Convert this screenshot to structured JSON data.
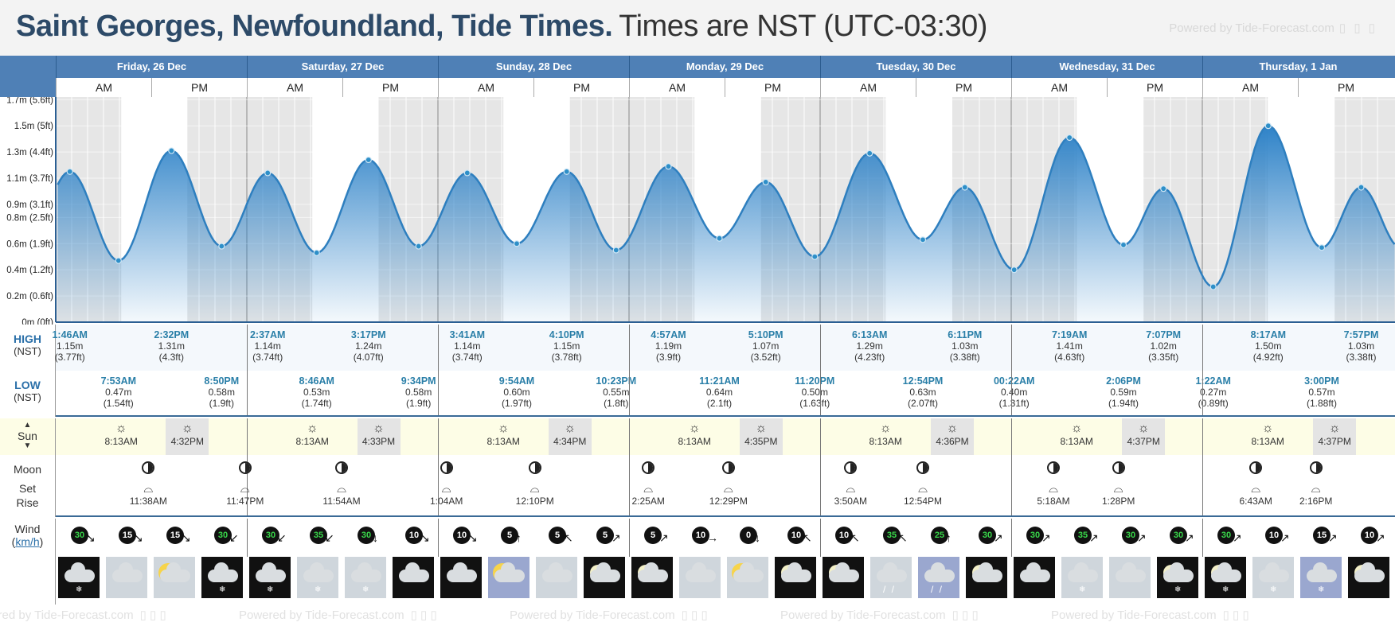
{
  "title": {
    "location": "Saint Georges, Newfoundland, Tide Times.",
    "timezone": "Times are NST (UTC-03:30)",
    "powered_by": "Powered by Tide-Forecast.com",
    "powered_icons": "▯ ▯ ▯"
  },
  "days": [
    {
      "label": "Friday, 26 Dec"
    },
    {
      "label": "Saturday, 27 Dec"
    },
    {
      "label": "Sunday, 28 Dec"
    },
    {
      "label": "Monday, 29 Dec"
    },
    {
      "label": "Tuesday, 30 Dec"
    },
    {
      "label": "Wednesday, 31 Dec"
    },
    {
      "label": "Thursday, 1 Jan"
    }
  ],
  "ampm": {
    "am": "AM",
    "pm": "PM"
  },
  "row_labels": {
    "high": "HIGH",
    "high_tz": "(NST)",
    "low": "LOW",
    "low_tz": "(NST)",
    "sun": "Sun",
    "moon": "Moon",
    "set": "Set",
    "rise": "Rise",
    "wind": "Wind",
    "wind_unit": "km/h"
  },
  "chart_data": {
    "type": "area",
    "title": "",
    "xlabel": "",
    "ylabel": "",
    "ylim": [
      0,
      1.72
    ],
    "y_ticks": [
      {
        "v": 0,
        "label": "0m (0ft)"
      },
      {
        "v": 0.2,
        "label": "0.2m (0.6ft)"
      },
      {
        "v": 0.4,
        "label": "0.4m (1.2ft)"
      },
      {
        "v": 0.6,
        "label": "0.6m (1.9ft)"
      },
      {
        "v": 0.8,
        "label": "0.8m (2.5ft)"
      },
      {
        "v": 0.9,
        "label": "0.9m (3.1ft)"
      },
      {
        "v": 1.1,
        "label": "1.1m (3.7ft)"
      },
      {
        "v": 1.3,
        "label": "1.3m (4.4ft)"
      },
      {
        "v": 1.5,
        "label": "1.5m (5ft)"
      },
      {
        "v": 1.7,
        "label": "1.7m (5.6ft)"
      }
    ],
    "series": [
      {
        "points": [
          {
            "time": "26 Dec 1:46AM",
            "h": 1.15
          },
          {
            "time": "26 Dec 7:53AM",
            "h": 0.47
          },
          {
            "time": "26 Dec 2:32PM",
            "h": 1.31
          },
          {
            "time": "26 Dec 8:50PM",
            "h": 0.58
          },
          {
            "time": "27 Dec 2:37AM",
            "h": 1.14
          },
          {
            "time": "27 Dec 8:46AM",
            "h": 0.53
          },
          {
            "time": "27 Dec 3:17PM",
            "h": 1.24
          },
          {
            "time": "27 Dec 9:34PM",
            "h": 0.58
          },
          {
            "time": "28 Dec 3:41AM",
            "h": 1.14
          },
          {
            "time": "28 Dec 9:54AM",
            "h": 0.6
          },
          {
            "time": "28 Dec 4:10PM",
            "h": 1.15
          },
          {
            "time": "28 Dec 10:23PM",
            "h": 0.55
          },
          {
            "time": "29 Dec 4:57AM",
            "h": 1.19
          },
          {
            "time": "29 Dec 11:21AM",
            "h": 0.64
          },
          {
            "time": "29 Dec 5:10PM",
            "h": 1.07
          },
          {
            "time": "29 Dec 11:20PM",
            "h": 0.5
          },
          {
            "time": "30 Dec 6:13AM",
            "h": 1.29
          },
          {
            "time": "30 Dec 12:54PM",
            "h": 0.63
          },
          {
            "time": "30 Dec 6:11PM",
            "h": 1.03
          },
          {
            "time": "31 Dec 00:22AM",
            "h": 0.4
          },
          {
            "time": "31 Dec 7:19AM",
            "h": 1.41
          },
          {
            "time": "31 Dec 2:06PM",
            "h": 0.59
          },
          {
            "time": "31 Dec 7:07PM",
            "h": 1.02
          },
          {
            "time": "1 Jan 1:22AM",
            "h": 0.27
          },
          {
            "time": "1 Jan 8:17AM",
            "h": 1.5
          },
          {
            "time": "1 Jan 3:00PM",
            "h": 0.57
          },
          {
            "time": "1 Jan 7:57PM",
            "h": 1.03
          }
        ]
      }
    ]
  },
  "highs": [
    {
      "day": 0,
      "hour": 1.77,
      "time": "1:46AM",
      "m": "1.15m",
      "ft": "(3.77ft)"
    },
    {
      "day": 0,
      "hour": 14.53,
      "time": "2:32PM",
      "m": "1.31m",
      "ft": "(4.3ft)"
    },
    {
      "day": 1,
      "hour": 2.62,
      "time": "2:37AM",
      "m": "1.14m",
      "ft": "(3.74ft)"
    },
    {
      "day": 1,
      "hour": 15.28,
      "time": "3:17PM",
      "m": "1.24m",
      "ft": "(4.07ft)"
    },
    {
      "day": 2,
      "hour": 3.68,
      "time": "3:41AM",
      "m": "1.14m",
      "ft": "(3.74ft)"
    },
    {
      "day": 2,
      "hour": 16.17,
      "time": "4:10PM",
      "m": "1.15m",
      "ft": "(3.78ft)"
    },
    {
      "day": 3,
      "hour": 4.95,
      "time": "4:57AM",
      "m": "1.19m",
      "ft": "(3.9ft)"
    },
    {
      "day": 3,
      "hour": 17.17,
      "time": "5:10PM",
      "m": "1.07m",
      "ft": "(3.52ft)"
    },
    {
      "day": 4,
      "hour": 6.22,
      "time": "6:13AM",
      "m": "1.29m",
      "ft": "(4.23ft)"
    },
    {
      "day": 4,
      "hour": 18.18,
      "time": "6:11PM",
      "m": "1.03m",
      "ft": "(3.38ft)"
    },
    {
      "day": 5,
      "hour": 7.32,
      "time": "7:19AM",
      "m": "1.41m",
      "ft": "(4.63ft)"
    },
    {
      "day": 5,
      "hour": 19.12,
      "time": "7:07PM",
      "m": "1.02m",
      "ft": "(3.35ft)"
    },
    {
      "day": 6,
      "hour": 8.28,
      "time": "8:17AM",
      "m": "1.50m",
      "ft": "(4.92ft)"
    },
    {
      "day": 6,
      "hour": 19.95,
      "time": "7:57PM",
      "m": "1.03m",
      "ft": "(3.38ft)"
    }
  ],
  "lows": [
    {
      "day": 0,
      "hour": 7.88,
      "time": "7:53AM",
      "m": "0.47m",
      "ft": "(1.54ft)"
    },
    {
      "day": 0,
      "hour": 20.83,
      "time": "8:50PM",
      "m": "0.58m",
      "ft": "(1.9ft)"
    },
    {
      "day": 1,
      "hour": 8.77,
      "time": "8:46AM",
      "m": "0.53m",
      "ft": "(1.74ft)"
    },
    {
      "day": 1,
      "hour": 21.57,
      "time": "9:34PM",
      "m": "0.58m",
      "ft": "(1.9ft)"
    },
    {
      "day": 2,
      "hour": 9.9,
      "time": "9:54AM",
      "m": "0.60m",
      "ft": "(1.97ft)"
    },
    {
      "day": 2,
      "hour": 22.38,
      "time": "10:23PM",
      "m": "0.55m",
      "ft": "(1.8ft)"
    },
    {
      "day": 3,
      "hour": 11.35,
      "time": "11:21AM",
      "m": "0.64m",
      "ft": "(2.1ft)"
    },
    {
      "day": 3,
      "hour": 23.33,
      "time": "11:20PM",
      "m": "0.50m",
      "ft": "(1.63ft)"
    },
    {
      "day": 4,
      "hour": 12.9,
      "time": "12:54PM",
      "m": "0.63m",
      "ft": "(2.07ft)"
    },
    {
      "day": 5,
      "hour": 0.37,
      "time": "00:22AM",
      "m": "0.40m",
      "ft": "(1.31ft)"
    },
    {
      "day": 5,
      "hour": 14.1,
      "time": "2:06PM",
      "m": "0.59m",
      "ft": "(1.94ft)"
    },
    {
      "day": 6,
      "hour": 1.37,
      "time": "1:22AM",
      "m": "0.27m",
      "ft": "(0.89ft)"
    },
    {
      "day": 6,
      "hour": 15.0,
      "time": "3:00PM",
      "m": "0.57m",
      "ft": "(1.88ft)"
    }
  ],
  "sun": [
    {
      "rise": "8:13AM",
      "set": "4:32PM",
      "rise_h": 8.22,
      "set_h": 16.53
    },
    {
      "rise": "8:13AM",
      "set": "4:33PM",
      "rise_h": 8.22,
      "set_h": 16.55
    },
    {
      "rise": "8:13AM",
      "set": "4:34PM",
      "rise_h": 8.22,
      "set_h": 16.57
    },
    {
      "rise": "8:13AM",
      "set": "4:35PM",
      "rise_h": 8.22,
      "set_h": 16.58
    },
    {
      "rise": "8:13AM",
      "set": "4:36PM",
      "rise_h": 8.22,
      "set_h": 16.6
    },
    {
      "rise": "8:13AM",
      "set": "4:37PM",
      "rise_h": 8.22,
      "set_h": 16.62
    },
    {
      "rise": "8:13AM",
      "set": "4:37PM",
      "rise_h": 8.22,
      "set_h": 16.62
    }
  ],
  "moon": [
    {
      "day": 0,
      "hour": 11.63,
      "time": "11:38AM",
      "type": "rise"
    },
    {
      "day": 0,
      "hour": 23.78,
      "time": "11:47PM",
      "type": "set"
    },
    {
      "day": 1,
      "hour": 11.9,
      "time": "11:54AM",
      "type": "rise"
    },
    {
      "day": 2,
      "hour": 1.07,
      "time": "1:04AM",
      "type": "set"
    },
    {
      "day": 2,
      "hour": 12.17,
      "time": "12:10PM",
      "type": "rise"
    },
    {
      "day": 3,
      "hour": 2.42,
      "time": "2:25AM",
      "type": "set"
    },
    {
      "day": 3,
      "hour": 12.48,
      "time": "12:29PM",
      "type": "rise"
    },
    {
      "day": 4,
      "hour": 3.83,
      "time": "3:50AM",
      "type": "set"
    },
    {
      "day": 4,
      "hour": 12.9,
      "time": "12:54PM",
      "type": "rise"
    },
    {
      "day": 5,
      "hour": 5.3,
      "time": "5:18AM",
      "type": "set"
    },
    {
      "day": 5,
      "hour": 13.47,
      "time": "1:28PM",
      "type": "rise"
    },
    {
      "day": 6,
      "hour": 6.72,
      "time": "6:43AM",
      "type": "set"
    },
    {
      "day": 6,
      "hour": 14.27,
      "time": "2:16PM",
      "type": "rise"
    }
  ],
  "wind": [
    {
      "v": "30",
      "dir": "↘",
      "green": true
    },
    {
      "v": "15",
      "dir": "↘",
      "green": false
    },
    {
      "v": "15",
      "dir": "↘",
      "green": false
    },
    {
      "v": "30",
      "dir": "↙",
      "green": true
    },
    {
      "v": "30",
      "dir": "↙",
      "green": true
    },
    {
      "v": "35",
      "dir": "↙",
      "green": true
    },
    {
      "v": "30",
      "dir": "↓",
      "green": true
    },
    {
      "v": "10",
      "dir": "↘",
      "green": false
    },
    {
      "v": "10",
      "dir": "↘",
      "green": false
    },
    {
      "v": "5",
      "dir": "↑",
      "green": false
    },
    {
      "v": "5",
      "dir": "↖",
      "green": false
    },
    {
      "v": "5",
      "dir": "↗",
      "green": false
    },
    {
      "v": "5",
      "dir": "↗",
      "green": false
    },
    {
      "v": "10",
      "dir": "→",
      "green": false
    },
    {
      "v": "0",
      "dir": "↓",
      "green": false
    },
    {
      "v": "10",
      "dir": "↖",
      "green": false
    },
    {
      "v": "10",
      "dir": "↖",
      "green": false
    },
    {
      "v": "35",
      "dir": "↖",
      "green": true
    },
    {
      "v": "25",
      "dir": "↑",
      "green": true
    },
    {
      "v": "30",
      "dir": "↗",
      "green": true
    },
    {
      "v": "30",
      "dir": "↗",
      "green": true
    },
    {
      "v": "35",
      "dir": "↗",
      "green": true
    },
    {
      "v": "30",
      "dir": "↗",
      "green": true
    },
    {
      "v": "30",
      "dir": "↗",
      "green": true
    },
    {
      "v": "30",
      "dir": "↗",
      "green": true
    },
    {
      "v": "10",
      "dir": "↗",
      "green": false
    },
    {
      "v": "15",
      "dir": "↗",
      "green": false
    },
    {
      "v": "10",
      "dir": "↗",
      "green": false
    }
  ],
  "weather": [
    {
      "bg": "night",
      "icon": "cloud",
      "p": "snow"
    },
    {
      "bg": "day",
      "icon": "cloud",
      "p": ""
    },
    {
      "bg": "day",
      "icon": "sun-cloud",
      "p": ""
    },
    {
      "bg": "night",
      "icon": "cloud",
      "p": "snow"
    },
    {
      "bg": "night",
      "icon": "cloud",
      "p": "snow"
    },
    {
      "bg": "day",
      "icon": "cloud",
      "p": "snow"
    },
    {
      "bg": "day",
      "icon": "cloud",
      "p": "snow"
    },
    {
      "bg": "night",
      "icon": "cloud",
      "p": ""
    },
    {
      "bg": "night",
      "icon": "cloud",
      "p": ""
    },
    {
      "bg": "blue",
      "icon": "sun-cloud",
      "p": ""
    },
    {
      "bg": "day",
      "icon": "cloud",
      "p": ""
    },
    {
      "bg": "night",
      "icon": "moon-cloud",
      "p": ""
    },
    {
      "bg": "night",
      "icon": "moon-cloud",
      "p": ""
    },
    {
      "bg": "day",
      "icon": "cloud",
      "p": ""
    },
    {
      "bg": "day",
      "icon": "sun-cloud",
      "p": ""
    },
    {
      "bg": "night",
      "icon": "moon-cloud",
      "p": ""
    },
    {
      "bg": "night",
      "icon": "moon-cloud",
      "p": ""
    },
    {
      "bg": "day",
      "icon": "cloud",
      "p": "rain"
    },
    {
      "bg": "blue",
      "icon": "cloud",
      "p": "rain"
    },
    {
      "bg": "night",
      "icon": "moon-cloud",
      "p": ""
    },
    {
      "bg": "night",
      "icon": "cloud",
      "p": ""
    },
    {
      "bg": "day",
      "icon": "cloud",
      "p": "snow"
    },
    {
      "bg": "day",
      "icon": "cloud",
      "p": ""
    },
    {
      "bg": "night",
      "icon": "moon-cloud",
      "p": "snow"
    },
    {
      "bg": "night",
      "icon": "moon-cloud",
      "p": "snow"
    },
    {
      "bg": "day",
      "icon": "cloud",
      "p": "snow"
    },
    {
      "bg": "blue",
      "icon": "cloud",
      "p": "snow"
    },
    {
      "bg": "night",
      "icon": "moon-cloud",
      "p": ""
    }
  ],
  "colors": {
    "header_blue": "#4f80b6",
    "title_blue": "#2d4a68",
    "tide_line": "#2e7fbf",
    "tide_fill_top": "#2f83c8",
    "time_teal": "#2a7fa8",
    "night_shade": "#e6e6e6",
    "sun_band": "#fdfde6"
  }
}
